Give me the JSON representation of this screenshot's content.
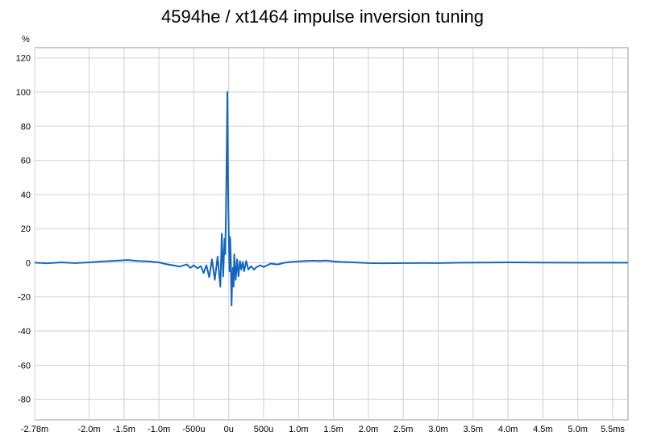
{
  "chart_data": {
    "type": "line",
    "title": "4594he / xt1464 impulse inversion tuning",
    "y_unit_label": "%",
    "xlabel": "",
    "ylabel": "",
    "xlim": [
      -2.78,
      5.72
    ],
    "ylim": [
      -92,
      126
    ],
    "grid": true,
    "legend": "none",
    "line_color": "#1565c0",
    "x_ticks": [
      {
        "value": -2.78,
        "label": "-2.78m"
      },
      {
        "value": -2.0,
        "label": "-2.0m"
      },
      {
        "value": -1.5,
        "label": "-1.5m"
      },
      {
        "value": -1.0,
        "label": "-1.0m"
      },
      {
        "value": -0.5,
        "label": "-500u"
      },
      {
        "value": 0.0,
        "label": "0u"
      },
      {
        "value": 0.5,
        "label": "500u"
      },
      {
        "value": 1.0,
        "label": "1.0m"
      },
      {
        "value": 1.5,
        "label": "1.5m"
      },
      {
        "value": 2.0,
        "label": "2.0m"
      },
      {
        "value": 2.5,
        "label": "2.5m"
      },
      {
        "value": 3.0,
        "label": "3.0m"
      },
      {
        "value": 3.5,
        "label": "3.5m"
      },
      {
        "value": 4.0,
        "label": "4.0m"
      },
      {
        "value": 4.5,
        "label": "4.5m"
      },
      {
        "value": 5.0,
        "label": "5.0m"
      },
      {
        "value": 5.5,
        "label": "5.5ms"
      }
    ],
    "y_ticks": [
      {
        "value": 120,
        "label": "120"
      },
      {
        "value": 100,
        "label": "100"
      },
      {
        "value": 80,
        "label": "80"
      },
      {
        "value": 60,
        "label": "60"
      },
      {
        "value": 40,
        "label": "40"
      },
      {
        "value": 20,
        "label": "20"
      },
      {
        "value": 0,
        "label": "0"
      },
      {
        "value": -20,
        "label": "-20"
      },
      {
        "value": -40,
        "label": "-40"
      },
      {
        "value": -60,
        "label": "-60"
      },
      {
        "value": -80,
        "label": "-80"
      }
    ],
    "series": [
      {
        "x": [
          -2.78,
          -2.6,
          -2.4,
          -2.2,
          -2.0,
          -1.8,
          -1.6,
          -1.45,
          -1.3,
          -1.15,
          -1.0,
          -0.9,
          -0.8,
          -0.7,
          -0.6,
          -0.55,
          -0.5,
          -0.45,
          -0.4,
          -0.36,
          -0.32,
          -0.28,
          -0.24,
          -0.2,
          -0.16,
          -0.12,
          -0.1,
          -0.08,
          -0.06,
          -0.05,
          -0.04,
          -0.03,
          -0.02,
          -0.01,
          0.0,
          0.01,
          0.02,
          0.03,
          0.04,
          0.05,
          0.06,
          0.07,
          0.08,
          0.1,
          0.12,
          0.14,
          0.16,
          0.18,
          0.2,
          0.22,
          0.25,
          0.28,
          0.32,
          0.36,
          0.4,
          0.45,
          0.5,
          0.6,
          0.7,
          0.8,
          0.9,
          1.0,
          1.1,
          1.2,
          1.3,
          1.4,
          1.5,
          1.6,
          1.8,
          2.0,
          2.2,
          2.5,
          2.8,
          3.0,
          3.3,
          3.6,
          4.0,
          4.5,
          5.0,
          5.5,
          5.72
        ],
        "values": [
          0,
          -0.3,
          0.2,
          -0.2,
          0.2,
          0.8,
          1.2,
          1.6,
          1.0,
          0.8,
          0.2,
          -0.8,
          -1.5,
          -2.2,
          -1.0,
          -3.0,
          -1.5,
          -3.2,
          -2.0,
          -6.0,
          -1.5,
          -8.5,
          2.0,
          -10.0,
          3.5,
          -14.0,
          17.0,
          -8.0,
          14.0,
          5.0,
          30.0,
          60.0,
          100.0,
          50.0,
          18.0,
          -5.0,
          15.0,
          2.0,
          -25.0,
          -10.0,
          -3.0,
          -14.0,
          5.0,
          -10.0,
          2.0,
          -8.0,
          1.0,
          -4.0,
          0.5,
          -5.0,
          1.0,
          -4.0,
          -2.0,
          -4.0,
          -2.5,
          -1.5,
          -2.5,
          -0.5,
          -1.0,
          0.0,
          0.5,
          0.8,
          1.0,
          1.2,
          1.0,
          1.3,
          0.8,
          0.5,
          0.2,
          -0.2,
          -0.3,
          -0.2,
          -0.1,
          -0.2,
          0.0,
          0.1,
          0.2,
          0.1,
          0.0,
          0.0,
          0.0
        ]
      }
    ]
  }
}
